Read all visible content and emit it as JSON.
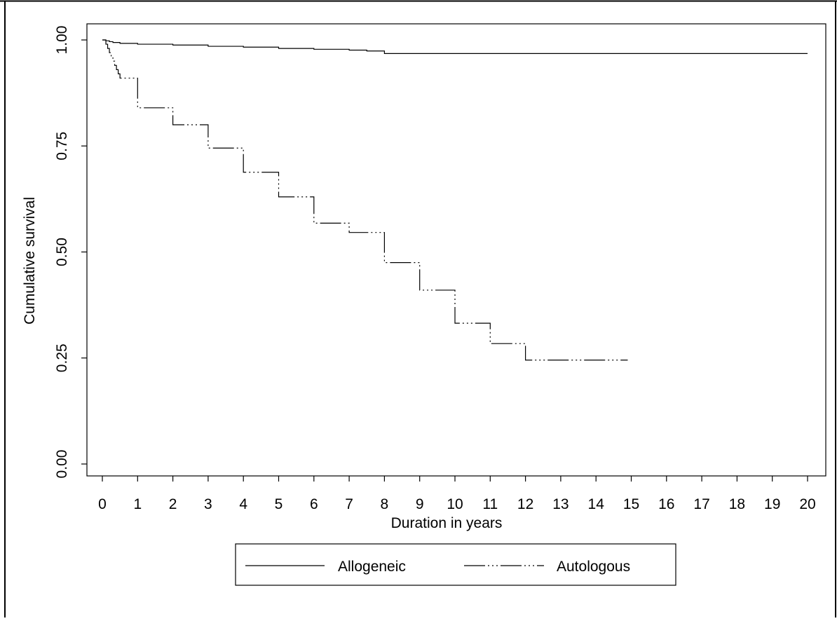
{
  "chart_data": {
    "type": "line",
    "title": "",
    "xlabel": "Duration in years",
    "ylabel": "Cumulative survival",
    "xlim": [
      0,
      20
    ],
    "ylim": [
      0,
      1
    ],
    "x_ticks": [
      "0",
      "1",
      "2",
      "3",
      "4",
      "5",
      "6",
      "7",
      "8",
      "9",
      "10",
      "11",
      "12",
      "13",
      "14",
      "15",
      "16",
      "17",
      "18",
      "19",
      "20"
    ],
    "y_ticks": [
      "0.00",
      "0.25",
      "0.50",
      "0.75",
      "1.00"
    ],
    "grid": false,
    "legend_position": "bottom-center",
    "series": [
      {
        "name": "Allogeneic",
        "line_style": "solid",
        "color": "#000000",
        "x": [
          0,
          0.1,
          0.2,
          0.3,
          0.5,
          1,
          2,
          3,
          4,
          5,
          6,
          7,
          7.5,
          8,
          20
        ],
        "y": [
          1.0,
          0.998,
          0.996,
          0.994,
          0.992,
          0.99,
          0.988,
          0.985,
          0.983,
          0.98,
          0.978,
          0.976,
          0.974,
          0.968,
          0.968
        ]
      },
      {
        "name": "Autologous",
        "line_style": "dash-dot-dot",
        "color": "#000000",
        "x": [
          0,
          0.1,
          0.15,
          0.2,
          0.25,
          0.3,
          0.35,
          0.4,
          0.45,
          0.5,
          1,
          2,
          3,
          4,
          5,
          6,
          7,
          8,
          9,
          10,
          11,
          12,
          14.9
        ],
        "y": [
          1.0,
          0.99,
          0.98,
          0.97,
          0.96,
          0.95,
          0.94,
          0.93,
          0.92,
          0.91,
          0.84,
          0.8,
          0.745,
          0.688,
          0.63,
          0.568,
          0.546,
          0.475,
          0.41,
          0.332,
          0.284,
          0.245,
          0.245
        ]
      }
    ]
  }
}
